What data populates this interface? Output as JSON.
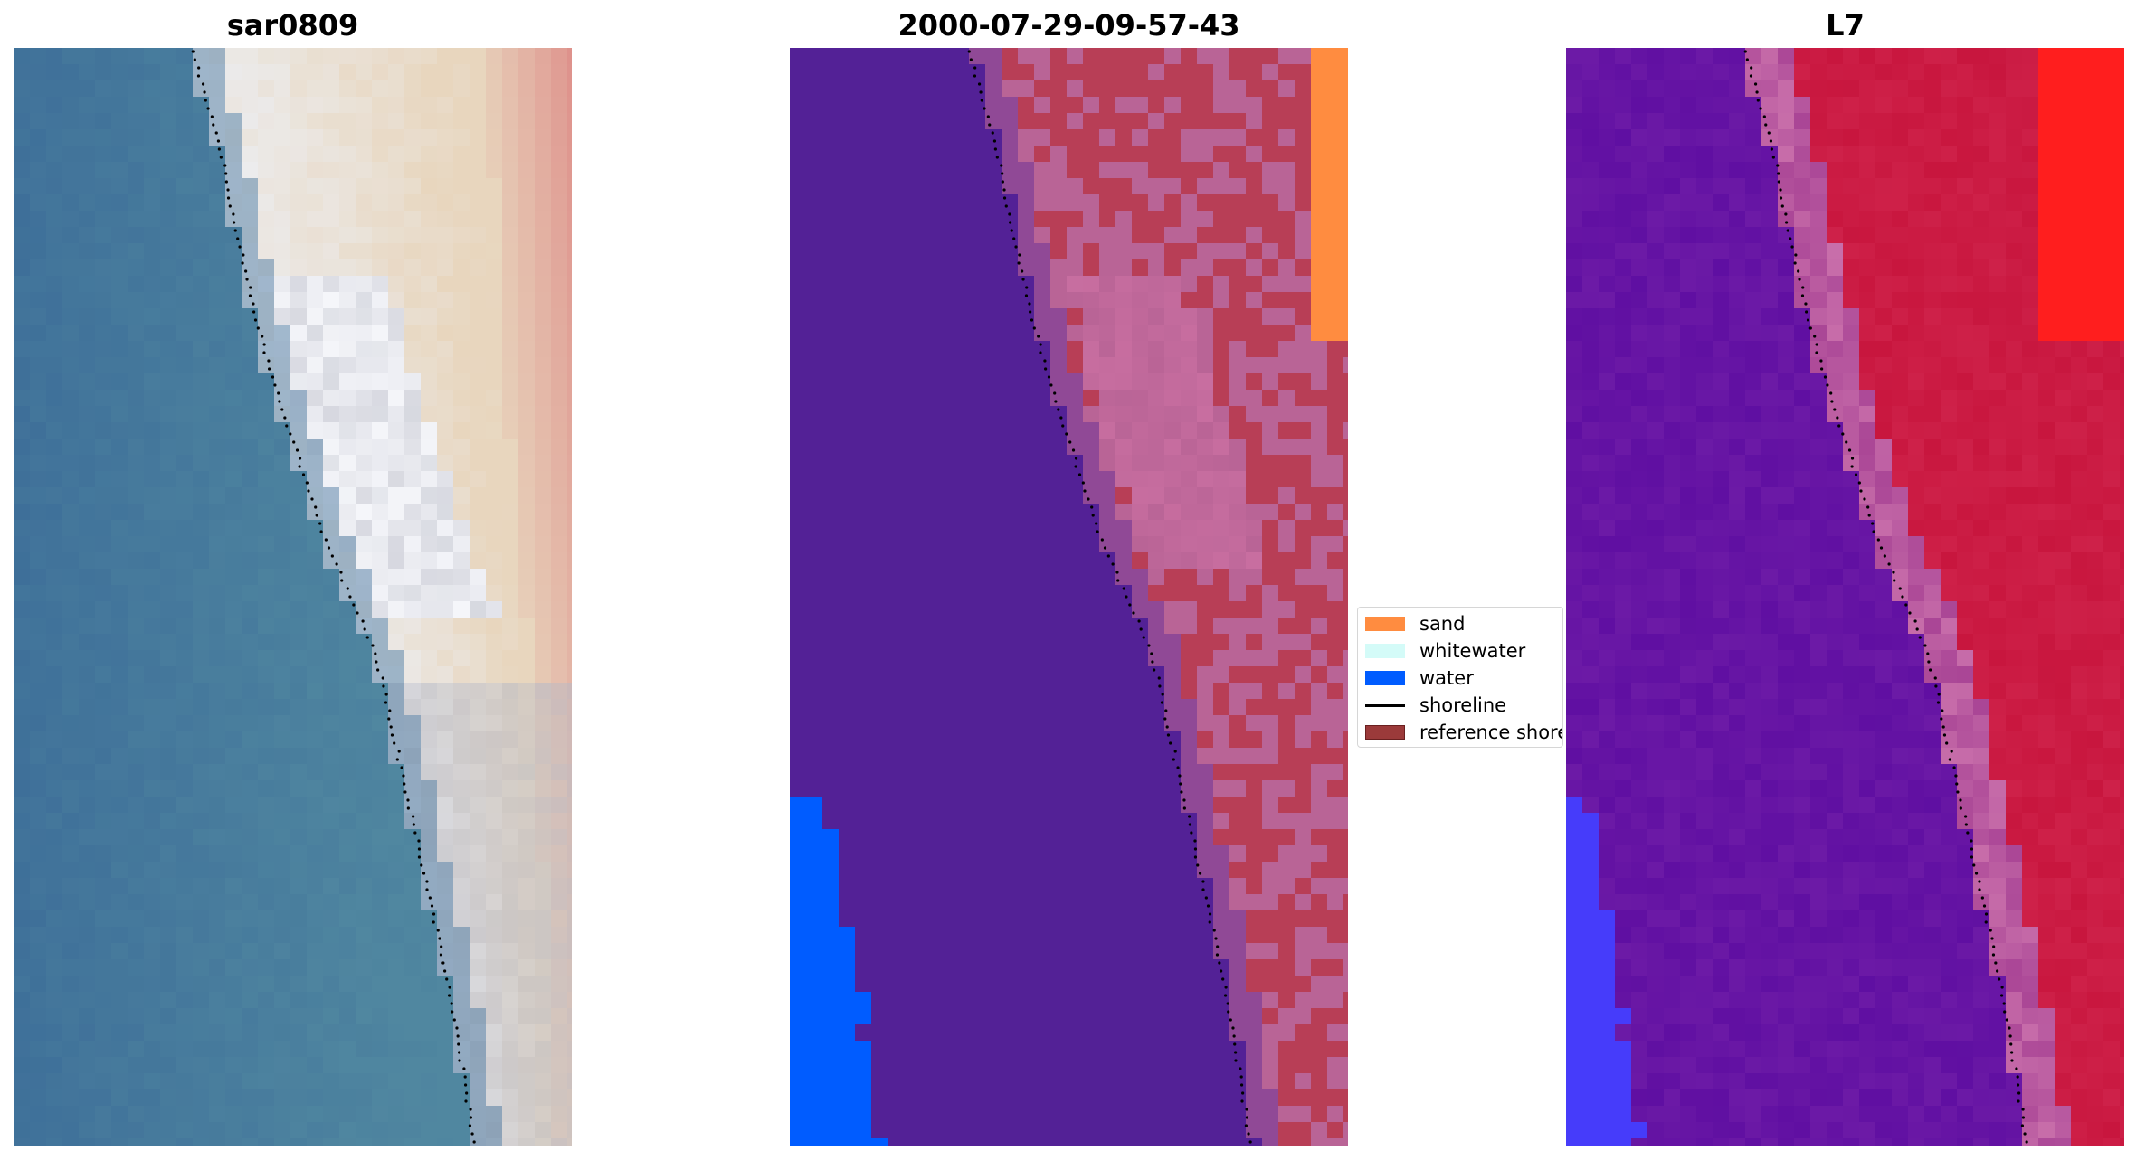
{
  "panels": [
    {
      "id": "rgb",
      "title": "sar0809"
    },
    {
      "id": "class",
      "title": "2000-07-29-09-57-43"
    },
    {
      "id": "mndwi",
      "title": "L7"
    }
  ],
  "legend": {
    "items": [
      {
        "label": "sand",
        "color": "#ff8c40",
        "kind": "patch"
      },
      {
        "label": "whitewater",
        "color": "#d4fbf8",
        "kind": "patch"
      },
      {
        "label": "water",
        "color": "#005cff",
        "kind": "patch"
      },
      {
        "label": "shoreline",
        "color": "#000000",
        "kind": "line"
      },
      {
        "label": "reference shoreline",
        "color": "#9b3a3a",
        "kind": "patch"
      }
    ]
  },
  "colors": {
    "ocean_rgb": "#3e6f99",
    "classified_background": "#532196",
    "classified_land": "#b83e56",
    "index_water": "#6c1aa6",
    "index_land": "#c8163e",
    "shoreline_dots": "#000000"
  }
}
